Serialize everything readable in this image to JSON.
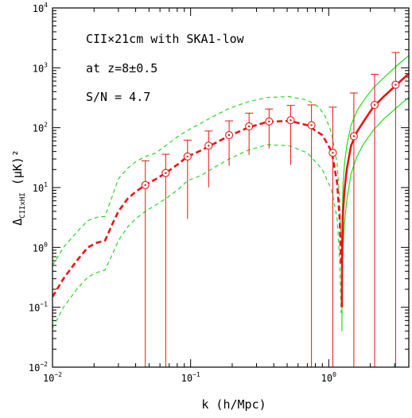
{
  "chart_data": {
    "type": "line",
    "title": "",
    "annotations": [
      "CII×21cm with SKA1-low",
      "at z=8±0.5",
      "S/N = 4.7"
    ],
    "xlabel": "k (h/Mpc)",
    "ylabel": "Δ",
    "ylabel_sub": "CIIxHI",
    "ylabel_tail": " (μK)²",
    "x_scale": "log",
    "y_scale": "log",
    "xlim": [
      0.01,
      3.8
    ],
    "ylim": [
      0.01,
      10000
    ],
    "x_ticks": [
      {
        "value": 0.01,
        "base": "10",
        "exp": "−2"
      },
      {
        "value": 0.1,
        "base": "10",
        "exp": "−1"
      },
      {
        "value": 1,
        "base": "10",
        "exp": "0"
      }
    ],
    "y_ticks": [
      {
        "value": 0.01,
        "base": "10",
        "exp": "−2"
      },
      {
        "value": 0.1,
        "base": "10",
        "exp": "−1"
      },
      {
        "value": 1,
        "base": "10",
        "exp": "0"
      },
      {
        "value": 10,
        "base": "10",
        "exp": "1"
      },
      {
        "value": 100,
        "base": "10",
        "exp": "2"
      },
      {
        "value": 1000,
        "base": "10",
        "exp": "3"
      },
      {
        "value": 10000,
        "base": "10",
        "exp": "4"
      }
    ],
    "colors": {
      "signal": "#ee1111",
      "bounds": "#22dd22",
      "points": "#ee1111",
      "axes": "#000000"
    },
    "signal": {
      "negative_part": {
        "x": [
          0.01,
          0.012,
          0.015,
          0.018,
          0.021,
          0.024,
          0.027,
          0.03,
          0.035,
          0.04,
          0.047,
          0.055,
          0.066,
          0.08,
          0.095,
          0.12,
          0.15,
          0.19,
          0.26,
          0.36,
          0.52,
          0.7,
          0.9,
          1.05,
          1.15,
          1.2,
          1.23
        ],
        "y": [
          0.15,
          0.3,
          0.6,
          1.0,
          1.2,
          1.3,
          2.4,
          4.0,
          6.5,
          8.5,
          11,
          13.5,
          17.5,
          24,
          33,
          42,
          55,
          73,
          100,
          125,
          130,
          110,
          75,
          40,
          12,
          3,
          0.5
        ]
      },
      "positive_part": {
        "x": [
          1.245,
          1.25,
          1.27,
          1.3,
          1.35,
          1.45,
          1.6,
          1.8,
          2.1,
          2.5,
          3.2,
          3.8
        ],
        "y": [
          0.1,
          1,
          4,
          9,
          20,
          50,
          85,
          130,
          220,
          330,
          560,
          800
        ]
      }
    },
    "upper_bound": {
      "left": {
        "x": [
          0.01,
          0.012,
          0.015,
          0.018,
          0.021,
          0.024,
          0.027,
          0.03,
          0.035,
          0.04,
          0.047,
          0.055,
          0.066,
          0.08,
          0.095,
          0.12,
          0.15,
          0.19,
          0.26,
          0.36,
          0.52,
          0.7,
          0.85,
          0.95,
          1.05,
          1.15,
          1.2,
          1.23
        ],
        "y": [
          0.5,
          1.0,
          1.8,
          2.8,
          3.2,
          3.3,
          7,
          14,
          21,
          27,
          33,
          37,
          50,
          70,
          90,
          120,
          160,
          210,
          270,
          320,
          330,
          290,
          220,
          150,
          80,
          25,
          6,
          1
        ]
      },
      "right": {
        "x": [
          1.245,
          1.25,
          1.27,
          1.3,
          1.35,
          1.45,
          1.6,
          1.8,
          2.1,
          2.5,
          3.2,
          3.8
        ],
        "y": [
          0.3,
          3,
          12,
          25,
          50,
          110,
          190,
          290,
          460,
          680,
          1150,
          1600
        ]
      }
    },
    "lower_bound": {
      "left": {
        "x": [
          0.01,
          0.012,
          0.015,
          0.018,
          0.021,
          0.024,
          0.027,
          0.03,
          0.035,
          0.04,
          0.047,
          0.055,
          0.066,
          0.08,
          0.095,
          0.12,
          0.15,
          0.19,
          0.26,
          0.36,
          0.52,
          0.7,
          0.9,
          1.05,
          1.15,
          1.2,
          1.23
        ],
        "y": [
          0.045,
          0.1,
          0.2,
          0.32,
          0.38,
          0.42,
          0.75,
          1.3,
          2.2,
          3.0,
          4.0,
          5.0,
          6.5,
          9,
          13,
          16,
          22,
          30,
          42,
          52,
          50,
          38,
          20,
          9,
          3,
          0.6,
          0.08
        ]
      },
      "right": {
        "x": [
          1.245,
          1.25,
          1.27,
          1.3,
          1.35,
          1.45,
          1.6,
          1.8,
          2.1,
          2.5,
          3.2,
          3.8
        ],
        "y": [
          0.04,
          0.25,
          1.0,
          2.5,
          6,
          17,
          33,
          55,
          90,
          140,
          230,
          320
        ]
      }
    },
    "points": [
      {
        "k": 0.047,
        "y": 11,
        "err_lo": 0.01,
        "err_hi": 28
      },
      {
        "k": 0.066,
        "y": 17.5,
        "err_lo": 0.01,
        "err_hi": 36
      },
      {
        "k": 0.095,
        "y": 33,
        "err_lo": 3,
        "err_hi": 62
      },
      {
        "k": 0.135,
        "y": 50,
        "err_lo": 10,
        "err_hi": 88
      },
      {
        "k": 0.19,
        "y": 75,
        "err_lo": 23,
        "err_hi": 130
      },
      {
        "k": 0.265,
        "y": 105,
        "err_lo": 35,
        "err_hi": 175
      },
      {
        "k": 0.37,
        "y": 127,
        "err_lo": 45,
        "err_hi": 205
      },
      {
        "k": 0.53,
        "y": 133,
        "err_lo": 24,
        "err_hi": 235
      },
      {
        "k": 0.75,
        "y": 110,
        "err_lo": 0.01,
        "err_hi": 240
      },
      {
        "k": 1.07,
        "y": 38,
        "err_lo": 0.01,
        "err_hi": 220
      },
      {
        "k": 1.52,
        "y": 72,
        "err_lo": 0.01,
        "err_hi": 380
      },
      {
        "k": 2.15,
        "y": 240,
        "err_lo": 0.01,
        "err_hi": 780
      },
      {
        "k": 3.05,
        "y": 520,
        "err_lo": 0.01,
        "err_hi": 1800
      }
    ]
  }
}
